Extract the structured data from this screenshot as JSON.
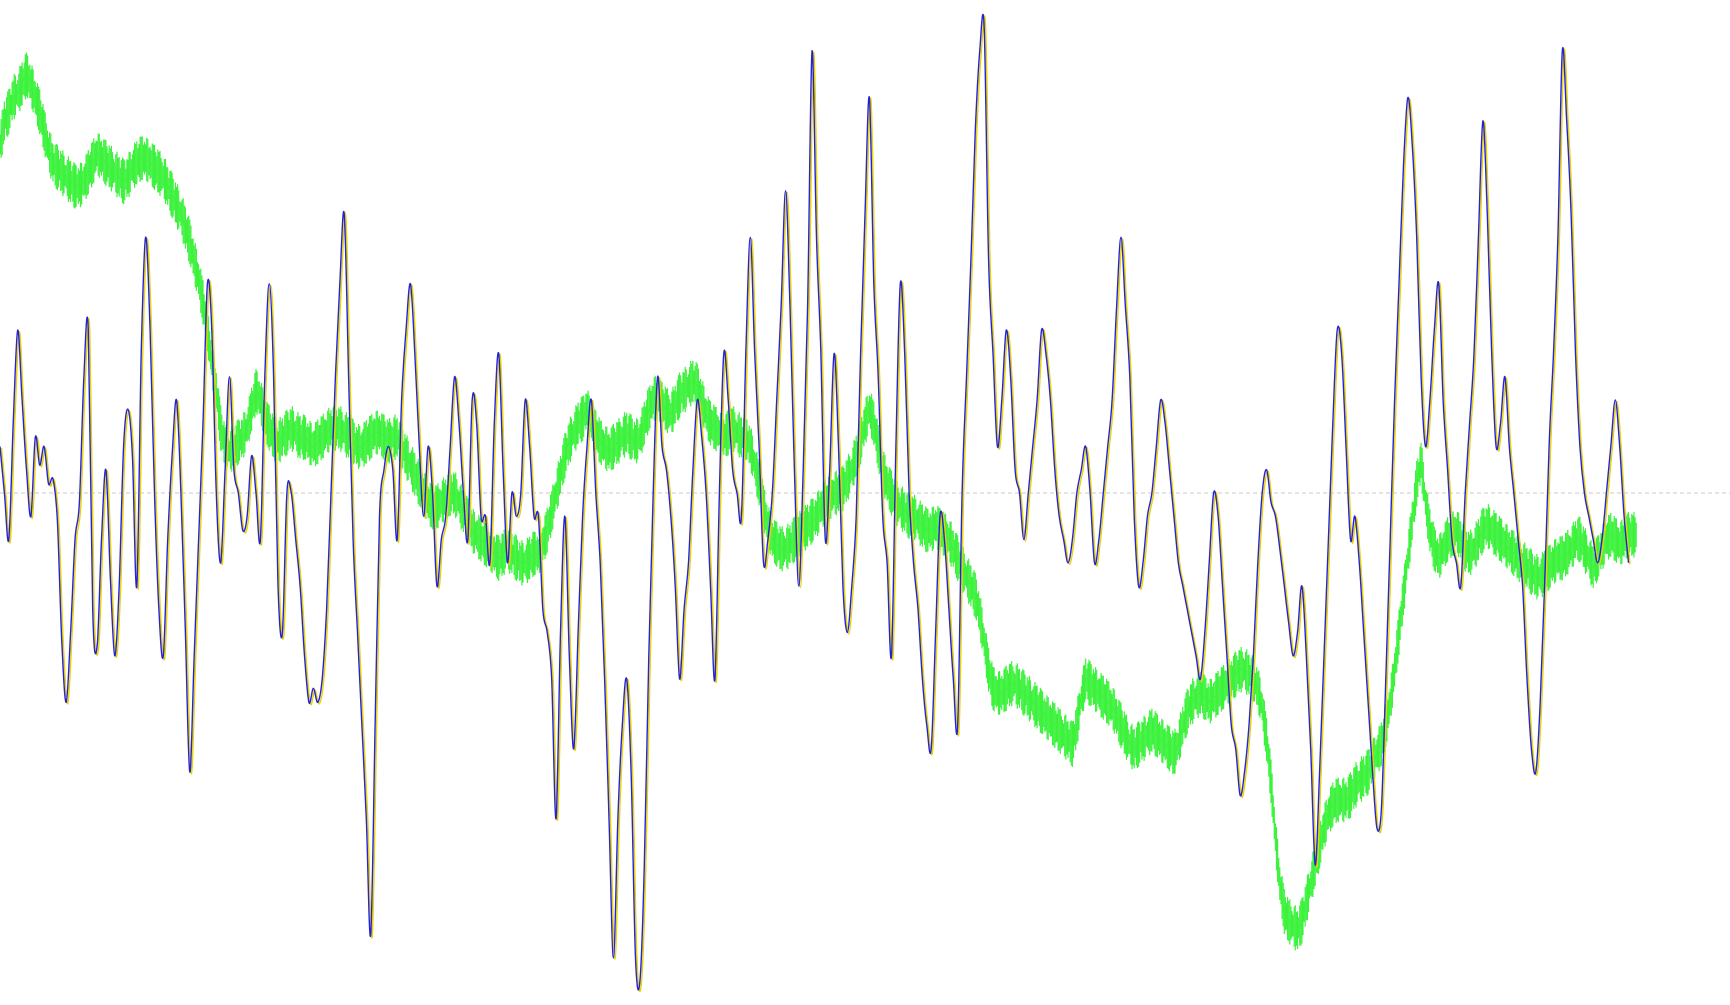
{
  "chart_data": {
    "type": "line",
    "title": "",
    "xlabel": "",
    "ylabel": "",
    "grid": false,
    "legend": "none",
    "xlim": [
      0,
      392
    ],
    "ylim": [
      -1.0,
      1.0
    ],
    "baseline": {
      "value": 0,
      "color": "#c8c8c8",
      "style": "dashed"
    },
    "series": [
      {
        "key": "price",
        "color": "#3cf23c",
        "style": "bars",
        "jitter": 0.035,
        "values": [
          0.75,
          0.8,
          0.82,
          0.85,
          0.86,
          0.88,
          0.9,
          0.88,
          0.85,
          0.82,
          0.78,
          0.74,
          0.71,
          0.7,
          0.69,
          0.68,
          0.67,
          0.66,
          0.66,
          0.67,
          0.69,
          0.71,
          0.73,
          0.72,
          0.71,
          0.7,
          0.69,
          0.68,
          0.67,
          0.68,
          0.7,
          0.71,
          0.72,
          0.72,
          0.71,
          0.7,
          0.69,
          0.68,
          0.66,
          0.64,
          0.62,
          0.6,
          0.57,
          0.54,
          0.5,
          0.46,
          0.41,
          0.35,
          0.28,
          0.22,
          0.14,
          0.1,
          0.09,
          0.1,
          0.11,
          0.12,
          0.14,
          0.18,
          0.22,
          0.2,
          0.16,
          0.14,
          0.12,
          0.11,
          0.12,
          0.13,
          0.14,
          0.13,
          0.12,
          0.12,
          0.11,
          0.1,
          0.11,
          0.12,
          0.13,
          0.14,
          0.14,
          0.14,
          0.13,
          0.12,
          0.11,
          0.1,
          0.1,
          0.11,
          0.12,
          0.13,
          0.13,
          0.12,
          0.11,
          0.12,
          0.12,
          0.1,
          0.08,
          0.06,
          0.04,
          0.02,
          0.0,
          -0.02,
          -0.03,
          -0.03,
          -0.02,
          -0.01,
          0.0,
          0.0,
          -0.02,
          -0.04,
          -0.06,
          -0.08,
          -0.09,
          -0.1,
          -0.11,
          -0.12,
          -0.13,
          -0.14,
          -0.13,
          -0.12,
          -0.13,
          -0.14,
          -0.15,
          -0.15,
          -0.14,
          -0.13,
          -0.13,
          -0.11,
          -0.08,
          -0.04,
          0.0,
          0.04,
          0.08,
          0.11,
          0.13,
          0.15,
          0.16,
          0.18,
          0.15,
          0.13,
          0.11,
          0.1,
          0.09,
          0.1,
          0.11,
          0.12,
          0.13,
          0.12,
          0.11,
          0.12,
          0.15,
          0.18,
          0.2,
          0.21,
          0.19,
          0.18,
          0.17,
          0.19,
          0.21,
          0.22,
          0.23,
          0.24,
          0.23,
          0.2,
          0.17,
          0.15,
          0.14,
          0.13,
          0.12,
          0.13,
          0.14,
          0.13,
          0.12,
          0.12,
          0.1,
          0.06,
          0.02,
          -0.03,
          -0.07,
          -0.1,
          -0.11,
          -0.12,
          -0.12,
          -0.11,
          -0.1,
          -0.09,
          -0.08,
          -0.07,
          -0.06,
          -0.05,
          -0.03,
          -0.02,
          -0.01,
          0.0,
          0.0,
          0.01,
          0.03,
          0.05,
          0.08,
          0.11,
          0.15,
          0.18,
          0.15,
          0.1,
          0.05,
          0.02,
          0.0,
          -0.02,
          -0.03,
          -0.04,
          -0.05,
          -0.05,
          -0.06,
          -0.07,
          -0.08,
          -0.08,
          -0.07,
          -0.08,
          -0.09,
          -0.1,
          -0.12,
          -0.14,
          -0.16,
          -0.18,
          -0.2,
          -0.22,
          -0.26,
          -0.32,
          -0.38,
          -0.42,
          -0.43,
          -0.43,
          -0.42,
          -0.41,
          -0.41,
          -0.42,
          -0.43,
          -0.44,
          -0.45,
          -0.46,
          -0.47,
          -0.48,
          -0.49,
          -0.5,
          -0.51,
          -0.52,
          -0.53,
          -0.54,
          -0.5,
          -0.44,
          -0.4,
          -0.41,
          -0.42,
          -0.43,
          -0.44,
          -0.45,
          -0.46,
          -0.48,
          -0.5,
          -0.52,
          -0.54,
          -0.55,
          -0.54,
          -0.53,
          -0.52,
          -0.51,
          -0.52,
          -0.53,
          -0.54,
          -0.55,
          -0.56,
          -0.54,
          -0.5,
          -0.47,
          -0.45,
          -0.44,
          -0.43,
          -0.44,
          -0.45,
          -0.44,
          -0.43,
          -0.42,
          -0.41,
          -0.4,
          -0.39,
          -0.38,
          -0.38,
          -0.39,
          -0.4,
          -0.42,
          -0.46,
          -0.53,
          -0.62,
          -0.74,
          -0.84,
          -0.9,
          -0.92,
          -0.93,
          -0.94,
          -0.92,
          -0.88,
          -0.84,
          -0.8,
          -0.76,
          -0.72,
          -0.69,
          -0.67,
          -0.66,
          -0.66,
          -0.66,
          -0.65,
          -0.63,
          -0.62,
          -0.61,
          -0.6,
          -0.58,
          -0.56,
          -0.54,
          -0.5,
          -0.45,
          -0.38,
          -0.3,
          -0.22,
          -0.14,
          -0.06,
          0.02,
          0.07,
          -0.02,
          -0.08,
          -0.12,
          -0.14,
          -0.12,
          -0.1,
          -0.09,
          -0.08,
          -0.1,
          -0.12,
          -0.13,
          -0.12,
          -0.1,
          -0.08,
          -0.07,
          -0.08,
          -0.09,
          -0.1,
          -0.11,
          -0.12,
          -0.13,
          -0.14,
          -0.15,
          -0.16,
          -0.17,
          -0.18,
          -0.18,
          -0.17,
          -0.16,
          -0.15,
          -0.14,
          -0.14,
          -0.13,
          -0.12,
          -0.1,
          -0.1,
          -0.12,
          -0.14,
          -0.16,
          -0.14,
          -0.12,
          -0.1,
          -0.09,
          -0.1,
          -0.11,
          -0.1,
          -0.09,
          -0.09
        ]
      },
      {
        "key": "oscillator-shadow",
        "color": "#e8d200",
        "style": "line",
        "values": [
          0.1,
          0.0,
          -0.1,
          0.15,
          0.35,
          0.2,
          0.05,
          -0.05,
          0.12,
          0.06,
          0.1,
          0.02,
          0.03,
          -0.06,
          -0.32,
          -0.45,
          -0.3,
          -0.1,
          -0.02,
          0.25,
          0.35,
          -0.25,
          -0.33,
          -0.1,
          0.05,
          -0.18,
          -0.35,
          -0.2,
          0.1,
          0.18,
          0.08,
          -0.2,
          0.3,
          0.55,
          0.35,
          0.0,
          -0.25,
          -0.35,
          -0.1,
          0.08,
          0.2,
          0.0,
          -0.3,
          -0.6,
          -0.35,
          -0.1,
          0.15,
          0.45,
          0.35,
          0.0,
          -0.15,
          0.05,
          0.25,
          0.05,
          0.0,
          -0.08,
          -0.05,
          0.08,
          0.0,
          -0.1,
          0.25,
          0.45,
          0.25,
          -0.2,
          -0.3,
          0.0,
          0.0,
          -0.1,
          -0.2,
          -0.35,
          -0.45,
          -0.42,
          -0.45,
          -0.4,
          -0.25,
          0.0,
          0.25,
          0.45,
          0.6,
          0.25,
          -0.1,
          -0.3,
          -0.5,
          -0.7,
          -0.95,
          -0.5,
          -0.05,
          0.05,
          0.1,
          0.05,
          -0.1,
          0.2,
          0.35,
          0.45,
          0.3,
          0.1,
          -0.05,
          0.1,
          0.0,
          -0.2,
          -0.1,
          -0.05,
          0.1,
          0.25,
          0.15,
          0.0,
          -0.1,
          0.2,
          0.15,
          -0.05,
          -0.05,
          -0.15,
          0.15,
          0.3,
          0.05,
          -0.15,
          0.0,
          -0.05,
          0.0,
          0.2,
          0.1,
          -0.05,
          -0.05,
          -0.25,
          -0.3,
          -0.4,
          -0.7,
          -0.3,
          -0.05,
          -0.35,
          -0.55,
          -0.3,
          -0.05,
          0.1,
          0.2,
          0.0,
          -0.15,
          -0.4,
          -0.7,
          -1.0,
          -0.7,
          -0.5,
          -0.4,
          -0.6,
          -1.0,
          -1.05,
          -0.8,
          -0.35,
          0.0,
          0.25,
          0.1,
          0.05,
          -0.05,
          -0.2,
          -0.4,
          -0.25,
          -0.15,
          0.05,
          0.2,
          0.12,
          0.0,
          -0.2,
          -0.4,
          0.0,
          0.3,
          0.2,
          0.05,
          0.0,
          -0.05,
          0.3,
          0.55,
          0.3,
          0.1,
          -0.15,
          -0.1,
          0.0,
          0.2,
          0.4,
          0.65,
          0.4,
          0.05,
          -0.2,
          0.05,
          0.4,
          0.95,
          0.55,
          0.3,
          -0.1,
          0.05,
          0.3,
          0.1,
          -0.2,
          -0.3,
          -0.2,
          -0.05,
          0.3,
          0.6,
          0.85,
          0.45,
          0.25,
          -0.05,
          -0.15,
          -0.35,
          0.1,
          0.45,
          0.3,
          0.0,
          -0.15,
          -0.25,
          -0.4,
          -0.5,
          -0.55,
          -0.3,
          -0.05,
          -0.1,
          -0.25,
          -0.4,
          -0.5,
          0.0,
          0.25,
          0.5,
          0.78,
          0.95,
          1.0,
          0.5,
          0.3,
          0.1,
          0.2,
          0.35,
          0.25,
          0.05,
          0.0,
          -0.1,
          0.0,
          0.1,
          0.2,
          0.35,
          0.3,
          0.2,
          0.05,
          -0.05,
          -0.1,
          -0.15,
          -0.1,
          0.0,
          0.05,
          0.1,
          0.0,
          -0.15,
          -0.1,
          0.0,
          0.1,
          0.2,
          0.4,
          0.55,
          0.4,
          0.25,
          -0.05,
          -0.2,
          -0.15,
          -0.05,
          0.0,
          0.1,
          0.2,
          0.15,
          0.05,
          -0.05,
          -0.15,
          -0.2,
          -0.25,
          -0.3,
          -0.35,
          -0.4,
          -0.3,
          -0.15,
          0.0,
          -0.05,
          -0.2,
          -0.35,
          -0.5,
          -0.55,
          -0.65,
          -0.6,
          -0.5,
          -0.35,
          -0.15,
          0.0,
          0.05,
          -0.02,
          -0.05,
          -0.12,
          -0.2,
          -0.28,
          -0.35,
          -0.3,
          -0.2,
          -0.35,
          -0.55,
          -0.8,
          -0.6,
          -0.35,
          -0.1,
          0.15,
          0.35,
          0.3,
          0.1,
          -0.1,
          -0.05,
          -0.15,
          -0.3,
          -0.45,
          -0.6,
          -0.72,
          -0.68,
          -0.4,
          -0.1,
          0.2,
          0.45,
          0.7,
          0.85,
          0.75,
          0.55,
          0.25,
          0.1,
          0.2,
          0.35,
          0.45,
          0.2,
          0.05,
          -0.1,
          -0.15,
          -0.2,
          0.0,
          0.15,
          0.3,
          0.55,
          0.8,
          0.6,
          0.3,
          0.1,
          0.15,
          0.25,
          0.1,
          0.0,
          -0.1,
          -0.2,
          -0.4,
          -0.55,
          -0.6,
          -0.45,
          -0.2,
          0.1,
          0.3,
          0.55,
          0.95,
          0.8,
          0.6,
          0.3,
          0.1,
          0.0,
          -0.05,
          -0.1,
          -0.15,
          -0.1,
          0.0,
          0.1,
          0.2,
          0.1,
          -0.05,
          -0.15
        ]
      },
      {
        "key": "oscillator",
        "color": "#2323d8",
        "style": "line",
        "values": [
          0.1,
          0.0,
          -0.1,
          0.15,
          0.35,
          0.2,
          0.05,
          -0.05,
          0.12,
          0.06,
          0.1,
          0.02,
          0.03,
          -0.06,
          -0.32,
          -0.45,
          -0.3,
          -0.1,
          -0.02,
          0.25,
          0.35,
          -0.25,
          -0.33,
          -0.1,
          0.05,
          -0.18,
          -0.35,
          -0.2,
          0.1,
          0.18,
          0.08,
          -0.2,
          0.3,
          0.55,
          0.35,
          0.0,
          -0.25,
          -0.35,
          -0.1,
          0.08,
          0.2,
          0.0,
          -0.3,
          -0.6,
          -0.35,
          -0.1,
          0.15,
          0.45,
          0.35,
          0.0,
          -0.15,
          0.05,
          0.25,
          0.05,
          0.0,
          -0.08,
          -0.05,
          0.08,
          0.0,
          -0.1,
          0.25,
          0.45,
          0.25,
          -0.2,
          -0.3,
          0.0,
          0.0,
          -0.1,
          -0.2,
          -0.35,
          -0.45,
          -0.42,
          -0.45,
          -0.4,
          -0.25,
          0.0,
          0.25,
          0.45,
          0.6,
          0.25,
          -0.1,
          -0.3,
          -0.5,
          -0.7,
          -0.95,
          -0.5,
          -0.05,
          0.05,
          0.1,
          0.05,
          -0.1,
          0.2,
          0.35,
          0.45,
          0.3,
          0.1,
          -0.05,
          0.1,
          0.0,
          -0.2,
          -0.1,
          -0.05,
          0.1,
          0.25,
          0.15,
          0.0,
          -0.1,
          0.2,
          0.15,
          -0.05,
          -0.05,
          -0.15,
          0.15,
          0.3,
          0.05,
          -0.15,
          0.0,
          -0.05,
          0.0,
          0.2,
          0.1,
          -0.05,
          -0.05,
          -0.25,
          -0.3,
          -0.4,
          -0.7,
          -0.3,
          -0.05,
          -0.35,
          -0.55,
          -0.3,
          -0.05,
          0.1,
          0.2,
          0.0,
          -0.15,
          -0.4,
          -0.7,
          -1.0,
          -0.7,
          -0.5,
          -0.4,
          -0.6,
          -1.0,
          -1.05,
          -0.8,
          -0.35,
          0.0,
          0.25,
          0.1,
          0.05,
          -0.05,
          -0.2,
          -0.4,
          -0.25,
          -0.15,
          0.05,
          0.2,
          0.12,
          0.0,
          -0.2,
          -0.4,
          0.0,
          0.3,
          0.2,
          0.05,
          0.0,
          -0.05,
          0.3,
          0.55,
          0.3,
          0.1,
          -0.15,
          -0.1,
          0.0,
          0.2,
          0.4,
          0.65,
          0.4,
          0.05,
          -0.2,
          0.05,
          0.4,
          0.95,
          0.55,
          0.3,
          -0.1,
          0.05,
          0.3,
          0.1,
          -0.2,
          -0.3,
          -0.2,
          -0.05,
          0.3,
          0.6,
          0.85,
          0.45,
          0.25,
          -0.05,
          -0.15,
          -0.35,
          0.1,
          0.45,
          0.3,
          0.0,
          -0.15,
          -0.25,
          -0.4,
          -0.5,
          -0.55,
          -0.3,
          -0.05,
          -0.1,
          -0.25,
          -0.4,
          -0.5,
          0.0,
          0.25,
          0.5,
          0.78,
          0.95,
          1.0,
          0.5,
          0.3,
          0.1,
          0.2,
          0.35,
          0.25,
          0.05,
          0.0,
          -0.1,
          0.0,
          0.1,
          0.2,
          0.35,
          0.3,
          0.2,
          0.05,
          -0.05,
          -0.1,
          -0.15,
          -0.1,
          0.0,
          0.05,
          0.1,
          0.0,
          -0.15,
          -0.1,
          0.0,
          0.1,
          0.2,
          0.4,
          0.55,
          0.4,
          0.25,
          -0.05,
          -0.2,
          -0.15,
          -0.05,
          0.0,
          0.1,
          0.2,
          0.15,
          0.05,
          -0.05,
          -0.15,
          -0.2,
          -0.25,
          -0.3,
          -0.35,
          -0.4,
          -0.3,
          -0.15,
          0.0,
          -0.05,
          -0.2,
          -0.35,
          -0.5,
          -0.55,
          -0.65,
          -0.6,
          -0.5,
          -0.35,
          -0.15,
          0.0,
          0.05,
          -0.02,
          -0.05,
          -0.12,
          -0.2,
          -0.28,
          -0.35,
          -0.3,
          -0.2,
          -0.35,
          -0.55,
          -0.8,
          -0.6,
          -0.35,
          -0.1,
          0.15,
          0.35,
          0.3,
          0.1,
          -0.1,
          -0.05,
          -0.15,
          -0.3,
          -0.45,
          -0.6,
          -0.72,
          -0.68,
          -0.4,
          -0.1,
          0.2,
          0.45,
          0.7,
          0.85,
          0.75,
          0.55,
          0.25,
          0.1,
          0.2,
          0.35,
          0.45,
          0.2,
          0.05,
          -0.1,
          -0.15,
          -0.2,
          0.0,
          0.15,
          0.3,
          0.55,
          0.8,
          0.6,
          0.3,
          0.1,
          0.15,
          0.25,
          0.1,
          0.0,
          -0.1,
          -0.2,
          -0.4,
          -0.55,
          -0.6,
          -0.45,
          -0.2,
          0.1,
          0.3,
          0.55,
          0.95,
          0.8,
          0.6,
          0.3,
          0.1,
          0.0,
          -0.05,
          -0.1,
          -0.15,
          -0.1,
          0.0,
          0.1,
          0.2,
          0.1,
          -0.05,
          -0.15
        ]
      }
    ]
  }
}
